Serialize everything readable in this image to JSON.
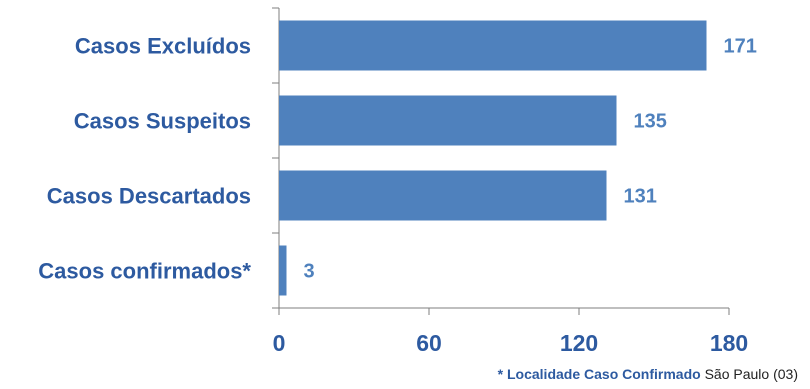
{
  "chart_data": {
    "type": "bar",
    "orientation": "horizontal",
    "categories": [
      "Casos Excluídos",
      "Casos Suspeitos",
      "Casos Descartados",
      "Casos confirmados*"
    ],
    "values": [
      171,
      135,
      131,
      3
    ],
    "value_labels": [
      "171",
      "135",
      "131",
      "3"
    ],
    "x_ticks": [
      0,
      60,
      120,
      180
    ],
    "xlim": [
      0,
      180
    ],
    "grid": false,
    "legend": "none",
    "bar_color": "#4f81bd",
    "label_color": "#2d5aa0",
    "value_label_color": "#4f81bd"
  },
  "footnote": {
    "prefix": "* Localidade Caso Confirmado",
    "suffix": " São Paulo (03)"
  }
}
